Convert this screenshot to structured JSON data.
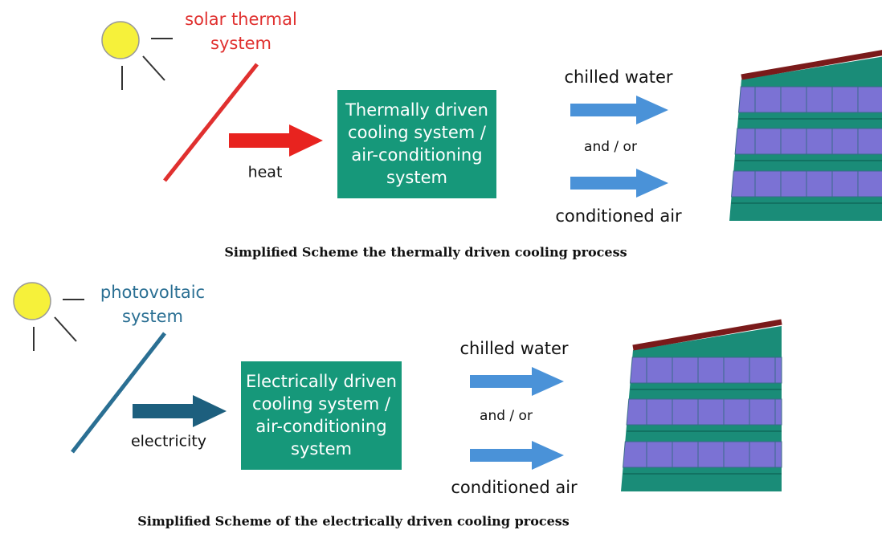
{
  "schemes": [
    {
      "source": [
        "solar thermal",
        "system"
      ],
      "input": "heat",
      "box": [
        "Thermally driven",
        "cooling system /",
        "air-conditioning",
        "system"
      ],
      "outputs": [
        "chilled water",
        "and / or",
        "conditioned air"
      ],
      "caption": "Simplified Scheme the thermally driven cooling process"
    },
    {
      "source": [
        "photovoltaic",
        "system"
      ],
      "input": "electricity",
      "box": [
        "Electrically driven",
        "cooling system /",
        "air-conditioning",
        "system"
      ],
      "outputs": [
        "chilled water",
        "and / or",
        "conditioned air"
      ],
      "caption": "Simplified Scheme of the electrically driven cooling process"
    }
  ]
}
